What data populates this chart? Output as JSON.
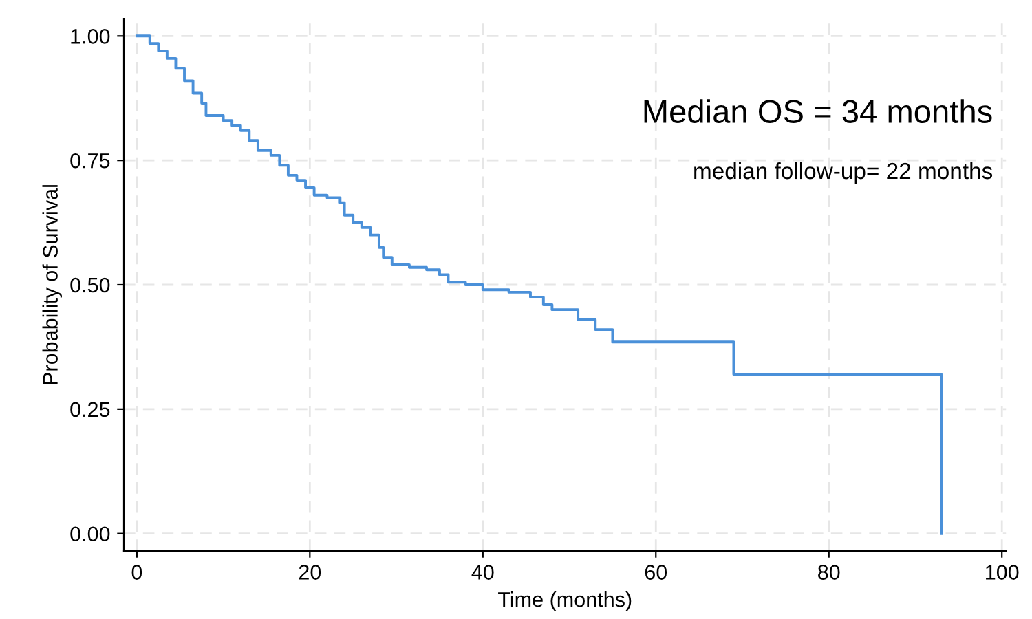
{
  "chart_data": {
    "type": "step",
    "xlabel": "Time (months)",
    "ylabel": "Probability of Survival",
    "annotations": [
      "Median OS = 34 months",
      "median follow-up= 22 months"
    ],
    "series": [
      {
        "color": "#4a90d9",
        "x": [
          0,
          1.5,
          2.5,
          3.5,
          4.5,
          5.5,
          6.5,
          7.5,
          8,
          10,
          11,
          12,
          13,
          14,
          15.5,
          16.5,
          17.5,
          18.5,
          19.5,
          20.5,
          22,
          23.5,
          24,
          25,
          26,
          27,
          28,
          28.5,
          29.5,
          31.5,
          33.5,
          35,
          36,
          38,
          40,
          43,
          45.5,
          47,
          48,
          51,
          53,
          55,
          69,
          93
        ],
        "values": [
          1.0,
          0.985,
          0.97,
          0.955,
          0.935,
          0.91,
          0.885,
          0.865,
          0.84,
          0.83,
          0.82,
          0.81,
          0.79,
          0.77,
          0.76,
          0.74,
          0.72,
          0.71,
          0.695,
          0.68,
          0.675,
          0.665,
          0.64,
          0.625,
          0.615,
          0.6,
          0.575,
          0.555,
          0.54,
          0.535,
          0.53,
          0.52,
          0.505,
          0.5,
          0.49,
          0.485,
          0.475,
          0.46,
          0.45,
          0.43,
          0.41,
          0.385,
          0.32,
          0.0
        ]
      }
    ],
    "xlim": [
      -1.5,
      100.5
    ],
    "ylim": [
      -0.035,
      1.035
    ],
    "xticks": [
      0,
      20,
      40,
      60,
      80,
      100
    ],
    "yticks": [
      {
        "value": 0,
        "label": "0.00"
      },
      {
        "value": 0.25,
        "label": "0.25"
      },
      {
        "value": 0.5,
        "label": "0.50"
      },
      {
        "value": 0.75,
        "label": "0.75"
      },
      {
        "value": 1,
        "label": "1.00"
      }
    ],
    "grid": true
  }
}
